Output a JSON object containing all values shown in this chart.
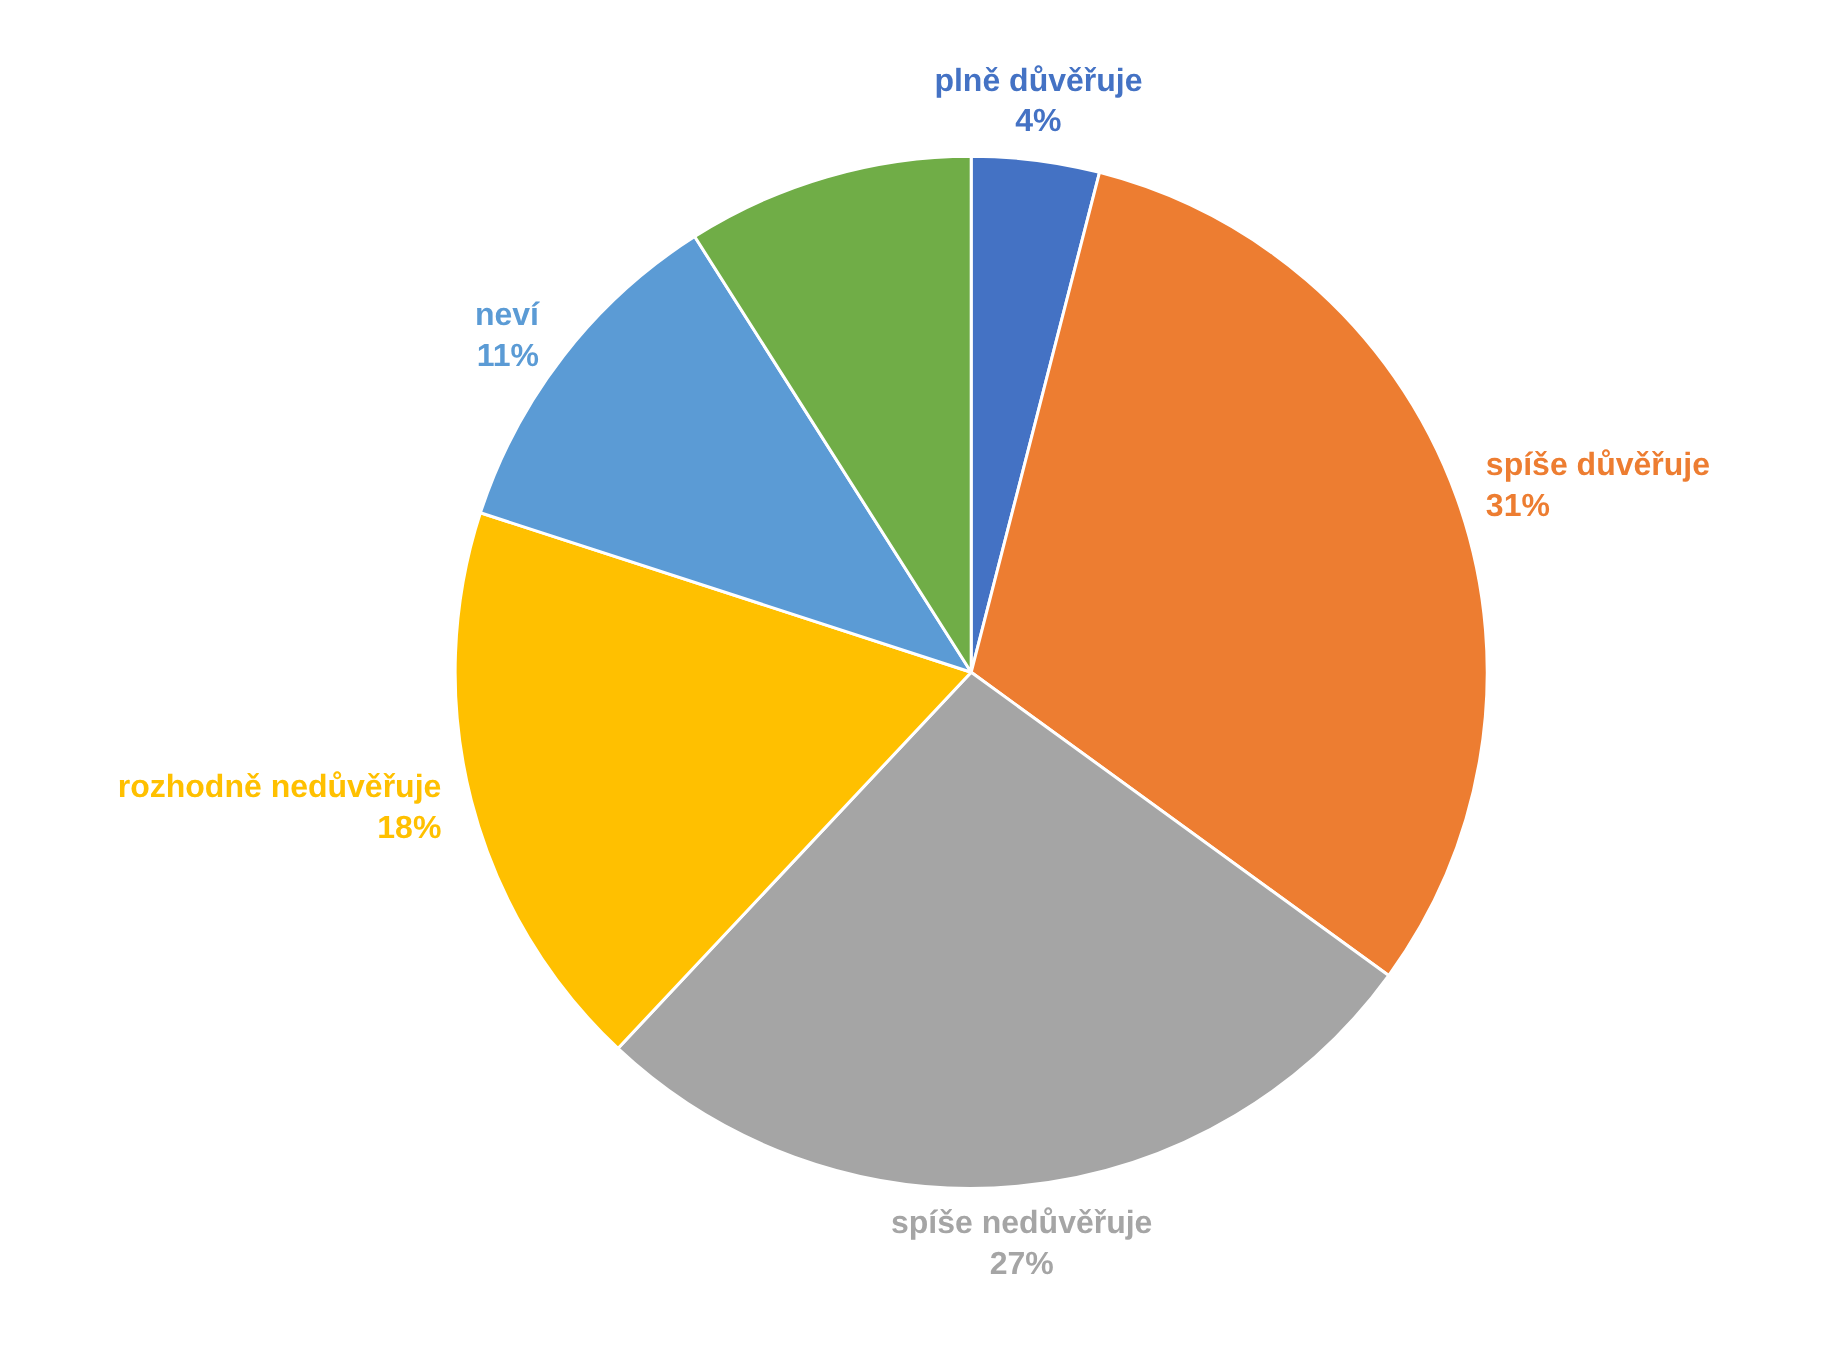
{
  "chart_data": {
    "type": "pie",
    "categories": [
      "plně důvěřuje",
      "spíše důvěřuje",
      "spíše nedůvěřuje",
      "rozhodně nedůvěřuje",
      "neví",
      null
    ],
    "values": [
      4,
      31,
      27,
      18,
      11,
      9
    ],
    "colors": [
      "#4472c4",
      "#ed7d31",
      "#a5a5a5",
      "#ffc000",
      "#5b9bd5",
      "#70ad47"
    ],
    "value_labels": [
      "4%",
      "31%",
      "27%",
      "18%",
      "11%",
      null
    ],
    "legend": false
  }
}
